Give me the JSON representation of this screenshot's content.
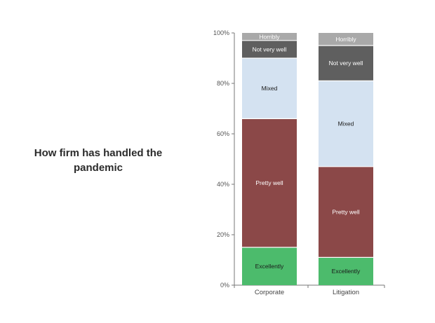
{
  "chart_data": {
    "type": "bar",
    "stacked": true,
    "title": "How firm has handled the pandemic",
    "categories": [
      "Corporate",
      "Litigation"
    ],
    "ylim": [
      0,
      100
    ],
    "yticks": [
      "0%",
      "20%",
      "40%",
      "60%",
      "80%",
      "100%"
    ],
    "grid": false,
    "series": [
      {
        "name": "Excellently",
        "values": [
          15,
          11
        ],
        "color": "#4cbb6c",
        "text_color": "#1a1a1a"
      },
      {
        "name": "Pretty well",
        "values": [
          51,
          36
        ],
        "color": "#8b4848",
        "text_color": "#ffffff"
      },
      {
        "name": "Mixed",
        "values": [
          24,
          34
        ],
        "color": "#d4e2f1",
        "text_color": "#1a1a1a"
      },
      {
        "name": "Not very well",
        "values": [
          7,
          14
        ],
        "color": "#5f5f5f",
        "text_color": "#ffffff"
      },
      {
        "name": "Horribly",
        "values": [
          3,
          5
        ],
        "color": "#a9a9a9",
        "text_color": "#ffffff"
      }
    ]
  }
}
